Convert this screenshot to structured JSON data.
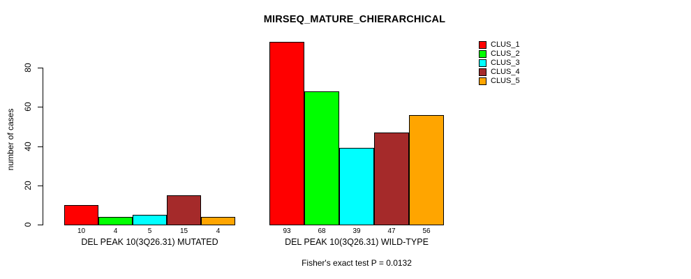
{
  "figure": {
    "background": "#ffffff"
  },
  "chart_data": {
    "type": "bar",
    "title": "MIRSEQ_MATURE_CHIERARCHICAL",
    "ylabel": "number of cases",
    "xlabel": "",
    "ylim": [
      0,
      93
    ],
    "yticks": [
      0,
      20,
      40,
      60,
      80
    ],
    "grid": false,
    "bar_border_color": "#000000",
    "legend": {
      "position": "top-right",
      "entries": [
        {
          "label": "CLUS_1",
          "color": "#FF0000"
        },
        {
          "label": "CLUS_2",
          "color": "#00FF00"
        },
        {
          "label": "CLUS_3",
          "color": "#00FFFF"
        },
        {
          "label": "CLUS_4",
          "color": "#A52A2A"
        },
        {
          "label": "CLUS_5",
          "color": "#FFA500"
        }
      ]
    },
    "groups": [
      {
        "label": "DEL PEAK 10(3Q26.31) MUTATED",
        "values": [
          10,
          4,
          5,
          15,
          4
        ]
      },
      {
        "label": "DEL PEAK 10(3Q26.31) WILD-TYPE",
        "values": [
          93,
          68,
          39,
          47,
          56
        ]
      }
    ],
    "bar_value_labels_shown": true,
    "footnote": "Fisher's exact test P = 0.0132"
  }
}
